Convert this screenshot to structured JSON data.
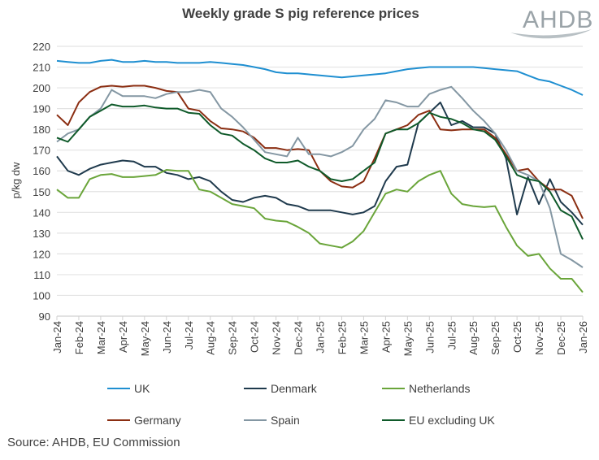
{
  "chart_data": {
    "type": "line",
    "title": "Weekly grade S pig reference prices",
    "xlabel": "",
    "ylabel": "p/kg dw",
    "ylim": [
      90,
      220
    ],
    "yticks": [
      90,
      100,
      110,
      120,
      130,
      140,
      150,
      160,
      170,
      180,
      190,
      200,
      210,
      220
    ],
    "grid": true,
    "legend_placement": "bottom",
    "x_tick_labels": [
      "Jan-24",
      "Feb-24",
      "Mar-24",
      "Apr-24",
      "May-24",
      "Jun-24",
      "Jul-24",
      "Aug-24",
      "Sep-24",
      "Oct-24",
      "Nov-24",
      "Dec-24",
      "Jan-25",
      "Feb-25",
      "Mar-25",
      "Apr-25",
      "May-25",
      "Jun-25",
      "Jul-25",
      "Aug-25",
      "Sep-25",
      "Oct-25",
      "Nov-25",
      "Dec-25",
      "Jan-26"
    ],
    "x_note": "values sampled twice per month from Jan-24 to Jan-26",
    "series": [
      {
        "name": "UK",
        "color": "#1f8fd1",
        "values": [
          213,
          212.5,
          212,
          212,
          213,
          213.5,
          212.5,
          212.5,
          213,
          212.5,
          212.5,
          212,
          212,
          212,
          212.5,
          212,
          211.5,
          211,
          210,
          209,
          207.5,
          207,
          207,
          206.5,
          206,
          205.5,
          205,
          205.5,
          206,
          206.5,
          207,
          208,
          209,
          209.5,
          210,
          210,
          210,
          210,
          210,
          209.5,
          209,
          208.5,
          208,
          206,
          204,
          203,
          201,
          199,
          196.5
        ]
      },
      {
        "name": "Denmark",
        "color": "#1f3a4d",
        "values": [
          167,
          160,
          158,
          161,
          163,
          164,
          165,
          164.5,
          162,
          162,
          159,
          158,
          156,
          157,
          155,
          150,
          146,
          145,
          147,
          148,
          147,
          144,
          143,
          141,
          141,
          141,
          140,
          139,
          140,
          143,
          155,
          162,
          163,
          183,
          188,
          193,
          182,
          184,
          181,
          181,
          178,
          166,
          139,
          157,
          144,
          156,
          145,
          140,
          134
        ]
      },
      {
        "name": "Netherlands",
        "color": "#6aa53a",
        "values": [
          151,
          147,
          147,
          156,
          158,
          158.5,
          157,
          157,
          157.5,
          158,
          160.5,
          160,
          160,
          151,
          150,
          147,
          144,
          143,
          142,
          137,
          136,
          135.5,
          133,
          130,
          125,
          124,
          123,
          126,
          131,
          140,
          149,
          151,
          150,
          155,
          158,
          160,
          149,
          144,
          143,
          142.5,
          143,
          133,
          124,
          119,
          120,
          113,
          108,
          108,
          101.5
        ]
      },
      {
        "name": "Germany",
        "color": "#8b2e12",
        "values": [
          187,
          182,
          193,
          198,
          200.5,
          201,
          200.5,
          201,
          201,
          200,
          198.5,
          198,
          190,
          189,
          184,
          180.5,
          180,
          179,
          176,
          171,
          171,
          170,
          170.5,
          170,
          160,
          155,
          152.5,
          152,
          155,
          166,
          178,
          180,
          182,
          187,
          189,
          180,
          179.5,
          180,
          180,
          180,
          176,
          168,
          160,
          161,
          155,
          151,
          151,
          148,
          137
        ]
      },
      {
        "name": "Spain",
        "color": "#8497a3",
        "values": [
          174,
          178,
          180,
          186,
          190,
          199,
          196,
          196,
          196,
          195,
          197,
          198,
          198,
          199,
          198,
          190,
          186,
          181,
          175,
          169,
          168,
          167,
          176,
          168,
          168,
          167,
          169,
          172,
          180,
          185,
          194,
          193,
          191,
          191,
          197,
          199,
          200.5,
          195,
          189,
          184,
          178,
          170,
          160,
          158,
          155,
          142,
          120,
          117,
          113.5
        ]
      },
      {
        "name": "EU excluding UK",
        "color": "#0f5a2a",
        "values": [
          176,
          174,
          180,
          186,
          189,
          192,
          191,
          191,
          191.5,
          190.5,
          190,
          190,
          188,
          187.5,
          182,
          178,
          177,
          173,
          170,
          166,
          164,
          164,
          165,
          162,
          160,
          156,
          155,
          156,
          160,
          164,
          178,
          180,
          180,
          183,
          188,
          186,
          185,
          183,
          180,
          179,
          175,
          167,
          158,
          156,
          155,
          150,
          141,
          138,
          127
        ]
      }
    ],
    "source": "Source: AHDB, EU Commission",
    "logo_text": "AHDB"
  }
}
